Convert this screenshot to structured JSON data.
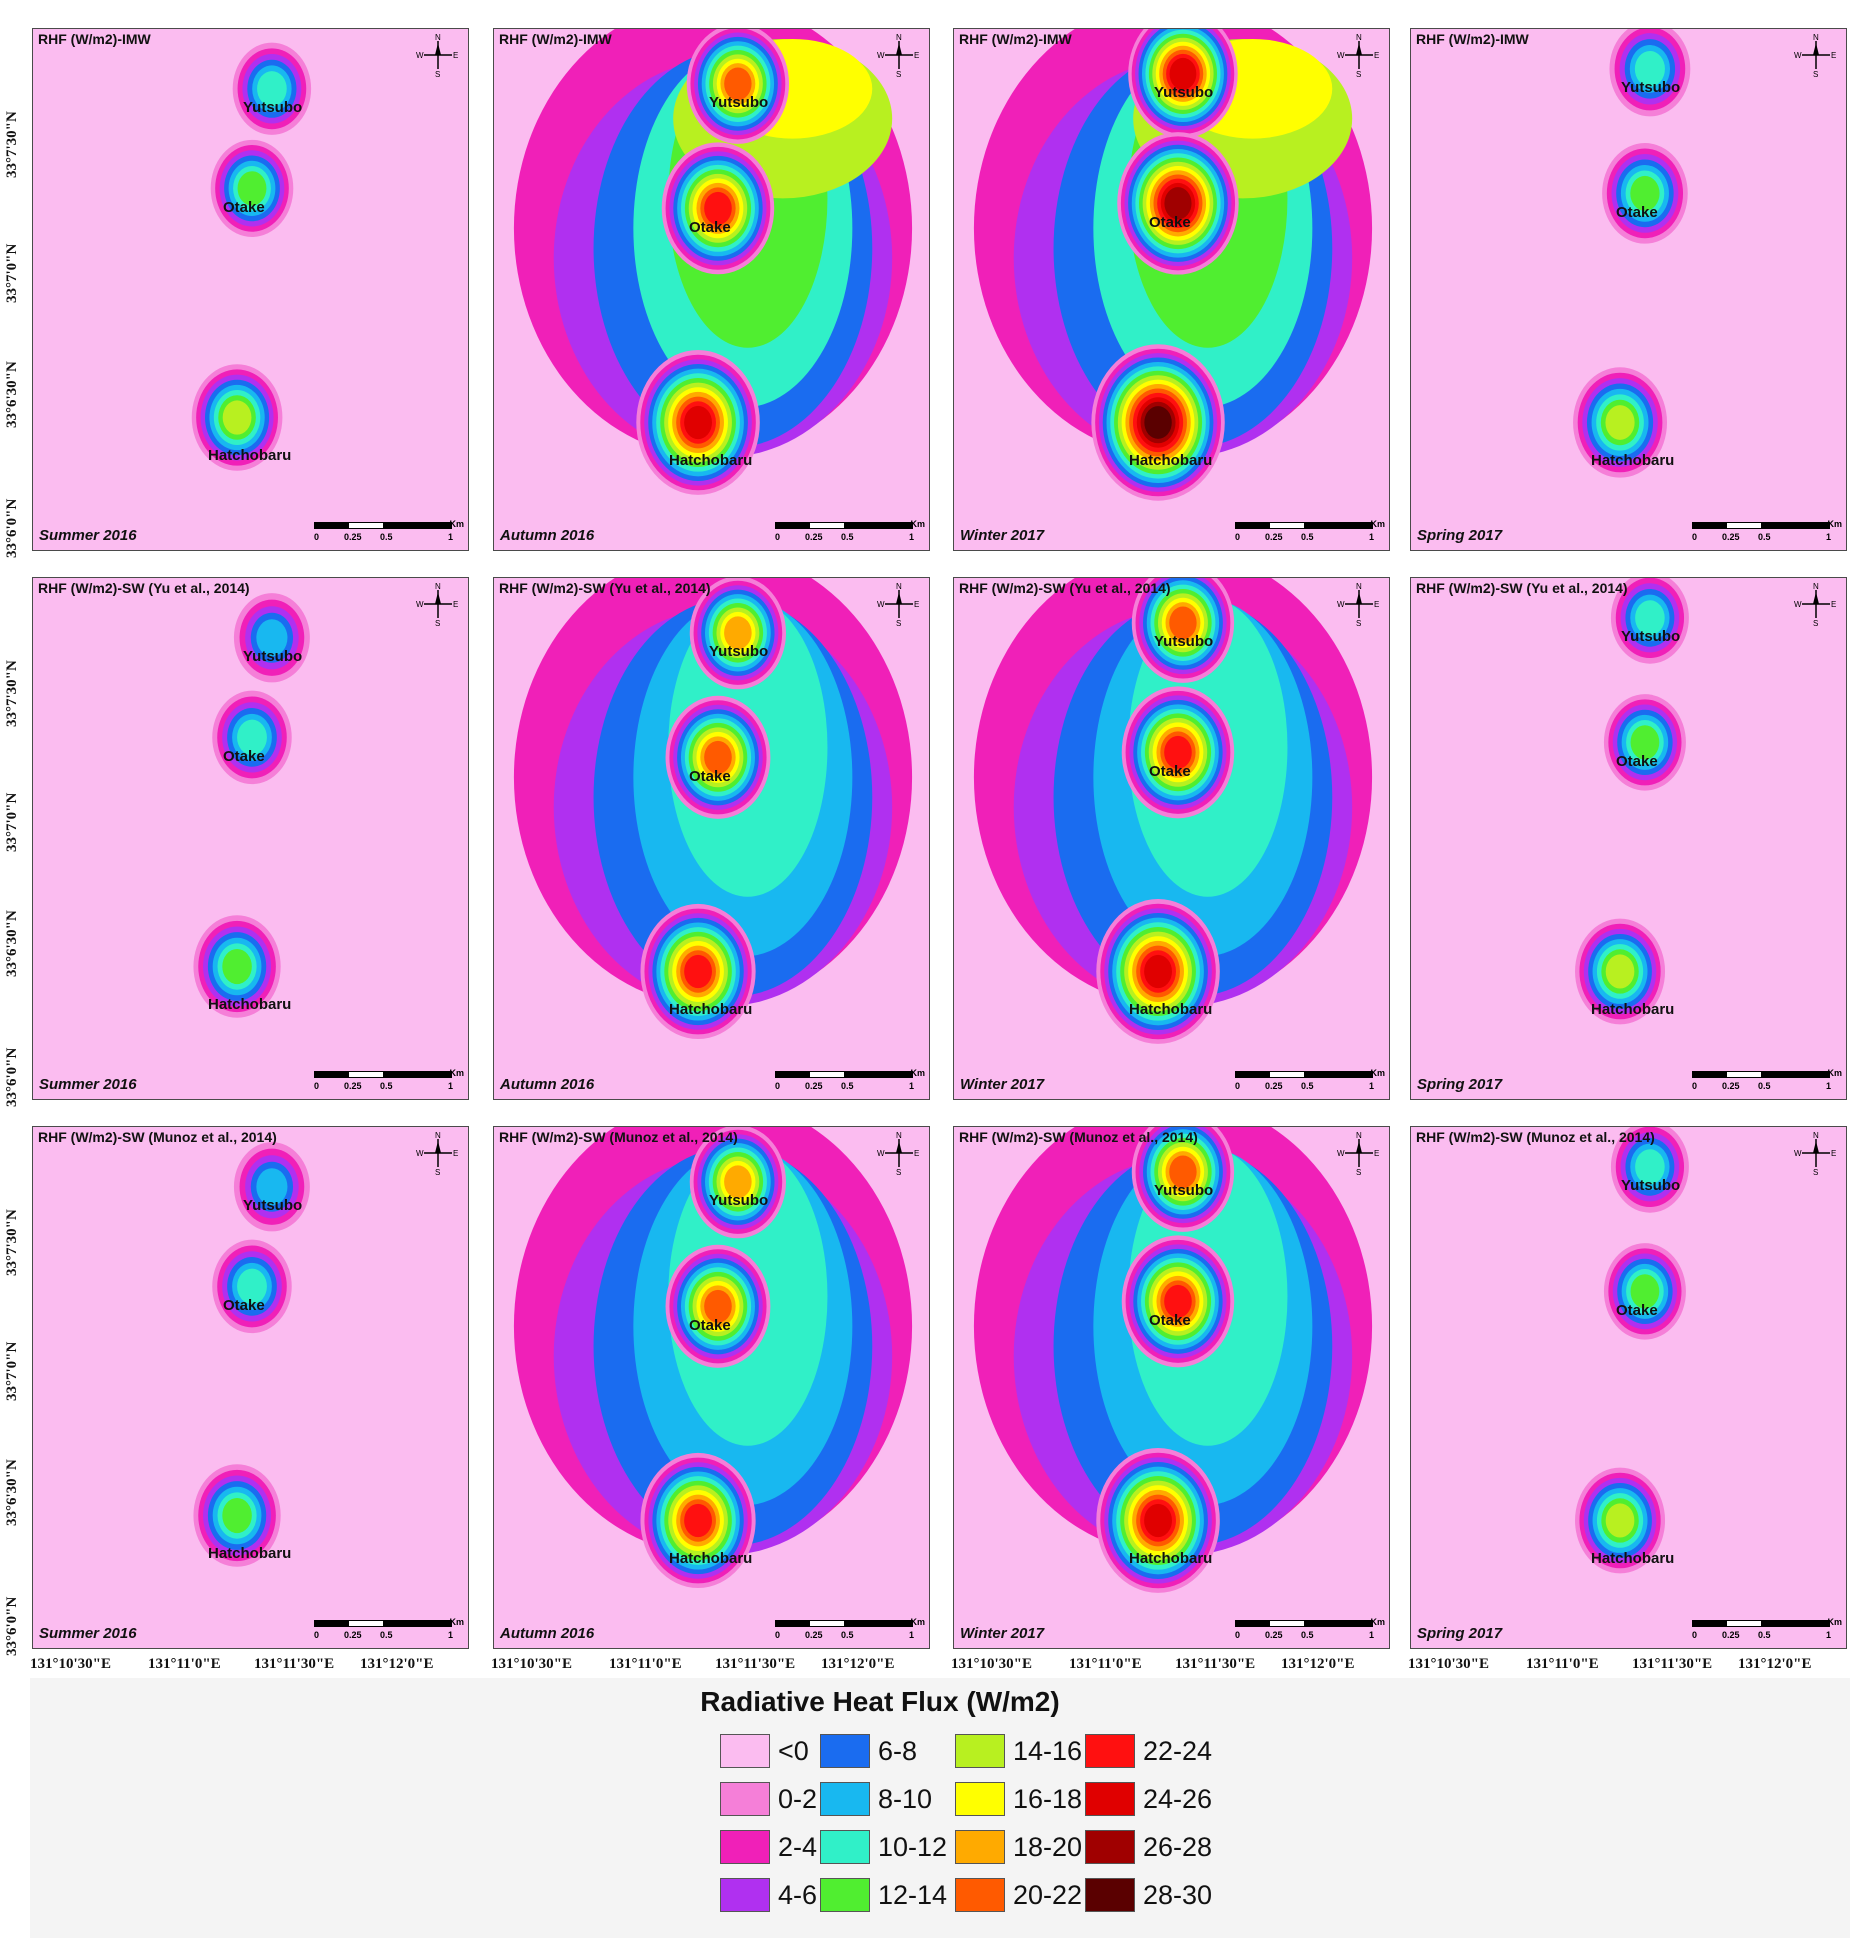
{
  "rows": [
    {
      "title": "RHF (W/m2)-IMW"
    },
    {
      "title": "RHF (W/m2)-SW (Yu et al., 2014)"
    },
    {
      "title": "RHF (W/m2)-SW (Munoz et al., 2014)"
    }
  ],
  "seasons": [
    "Summer 2016",
    "Autumn 2016",
    "Winter 2017",
    "Spring 2017"
  ],
  "locations": {
    "yutsubo": "Yutsubo",
    "otake": "Otake",
    "hatchobaru": "Hatchobaru"
  },
  "compass": {
    "n": "N",
    "s": "S",
    "e": "E",
    "w": "W"
  },
  "scalebar": {
    "t0": "0",
    "t1": "0.25",
    "t2": "0.5",
    "t3": "1",
    "unit": "Km"
  },
  "lat_labels": [
    "33°7'30\"N",
    "33°7'0\"N",
    "33°6'30\"N",
    "33°6'0\"N"
  ],
  "lon_labels": [
    "131°10'30\"E",
    "131°11'0\"E",
    "131°11'30\"E",
    "131°12'0\"E"
  ],
  "legend": {
    "title": "Radiative Heat Flux (W/m2)",
    "classes": [
      {
        "label": "<0",
        "color": "#fbbcf0"
      },
      {
        "label": "0-2",
        "color": "#f57fd8"
      },
      {
        "label": "2-4",
        "color": "#f020b8"
      },
      {
        "label": "4-6",
        "color": "#b030f0"
      },
      {
        "label": "6-8",
        "color": "#1a6cf0"
      },
      {
        "label": "8-10",
        "color": "#18b8f0"
      },
      {
        "label": "10-12",
        "color": "#30f0c8"
      },
      {
        "label": "12-14",
        "color": "#50ee30"
      },
      {
        "label": "14-16",
        "color": "#b8f020"
      },
      {
        "label": "16-18",
        "color": "#ffff00"
      },
      {
        "label": "18-20",
        "color": "#ffaa00"
      },
      {
        "label": "20-22",
        "color": "#ff5a00"
      },
      {
        "label": "22-24",
        "color": "#ff1010"
      },
      {
        "label": "24-26",
        "color": "#e00000"
      },
      {
        "label": "26-28",
        "color": "#a00000"
      },
      {
        "label": "28-30",
        "color": "#5a0000"
      }
    ]
  }
}
